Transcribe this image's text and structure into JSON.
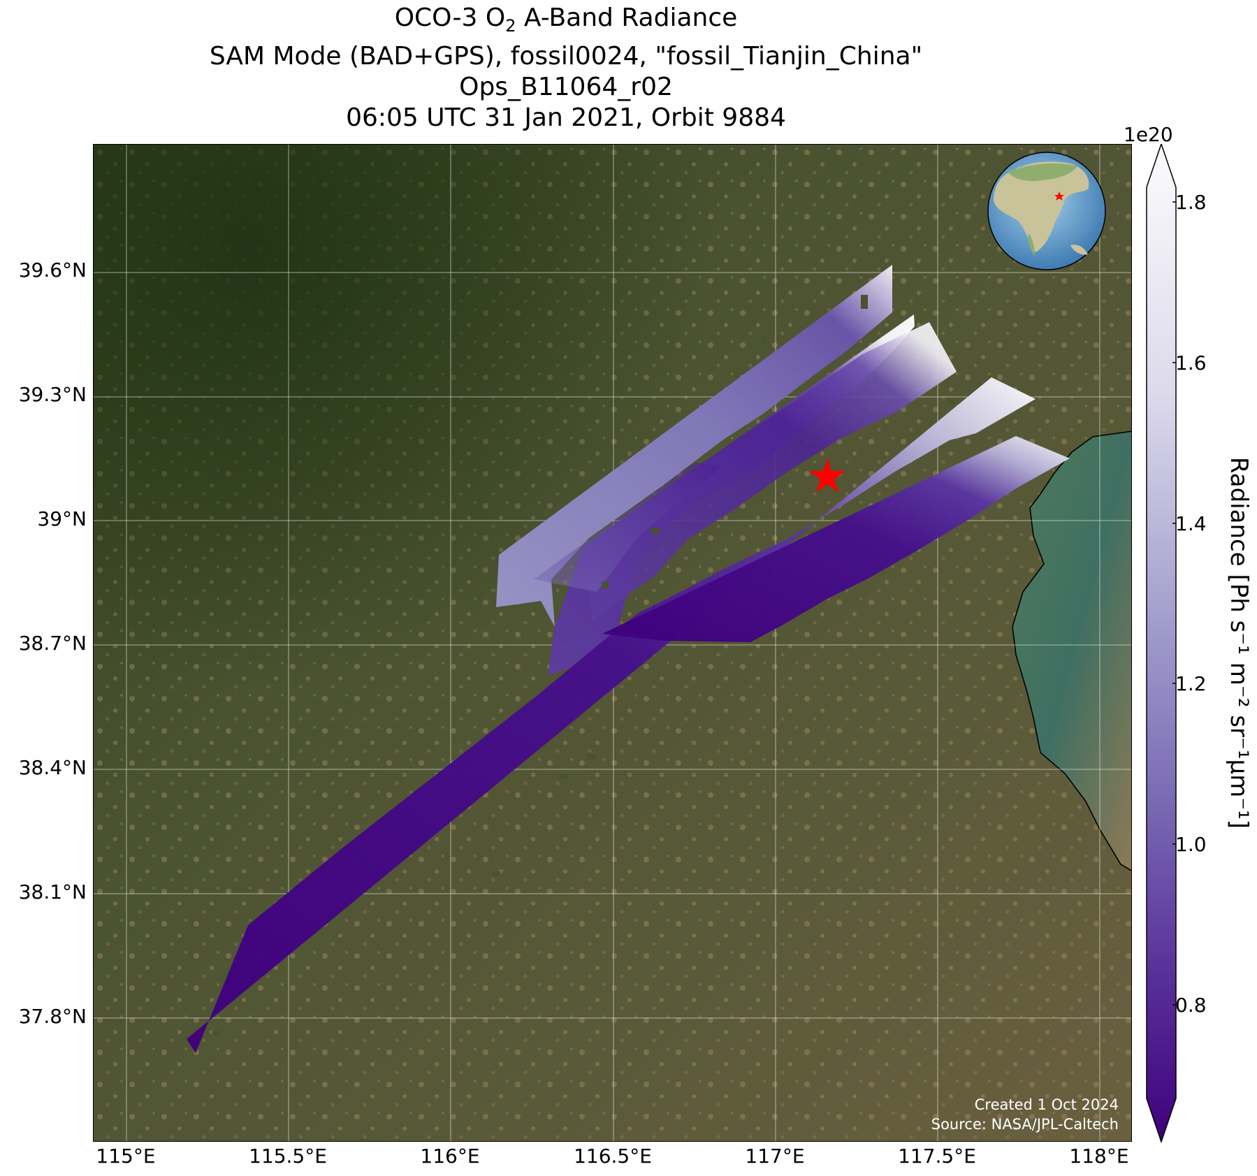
{
  "title": {
    "line1_prefix": "OCO-3 O",
    "line1_sub": "2",
    "line1_suffix": " A-Band Radiance",
    "line2": "SAM Mode (BAD+GPS), fossil0024, \"fossil_Tianjin_China\"",
    "line3": "Ops_B11064_r02",
    "line4": "06:05 UTC 31 Jan 2021, Orbit 9884"
  },
  "map": {
    "lon_range": [
      114.9,
      118.1
    ],
    "lat_range": [
      37.45,
      39.9
    ],
    "x_ticks": [
      "115°E",
      "115.5°E",
      "116°E",
      "116.5°E",
      "117°E",
      "117.5°E",
      "118°E"
    ],
    "y_ticks": [
      "39.6°N",
      "39.3°N",
      "39°N",
      "38.7°N",
      "38.4°N",
      "38.1°N",
      "37.8°N"
    ],
    "target_marker": {
      "lon": 117.18,
      "lat": 39.13,
      "color": "#ff0000",
      "symbol": "star"
    },
    "basemap": "satellite imagery",
    "gridlines": true
  },
  "colorbar": {
    "label": "Radiance [Ph s⁻¹ m⁻² sr⁻¹μm⁻¹]",
    "exponent": "1e20",
    "min": 0.68,
    "max": 1.84,
    "ticks": [
      "1.8",
      "1.6",
      "1.4",
      "1.2",
      "1.0",
      "0.8"
    ],
    "colormap": "Purples_r",
    "extend": "both",
    "colors": {
      "low": "#3f007d",
      "mid": "#8a84c0",
      "high": "#fcfbfd"
    }
  },
  "inset_globe": {
    "marker_color": "#ff0000"
  },
  "credits": {
    "created": "Created 1 Oct 2024",
    "source": "Source: NASA/JPL-Caltech"
  }
}
